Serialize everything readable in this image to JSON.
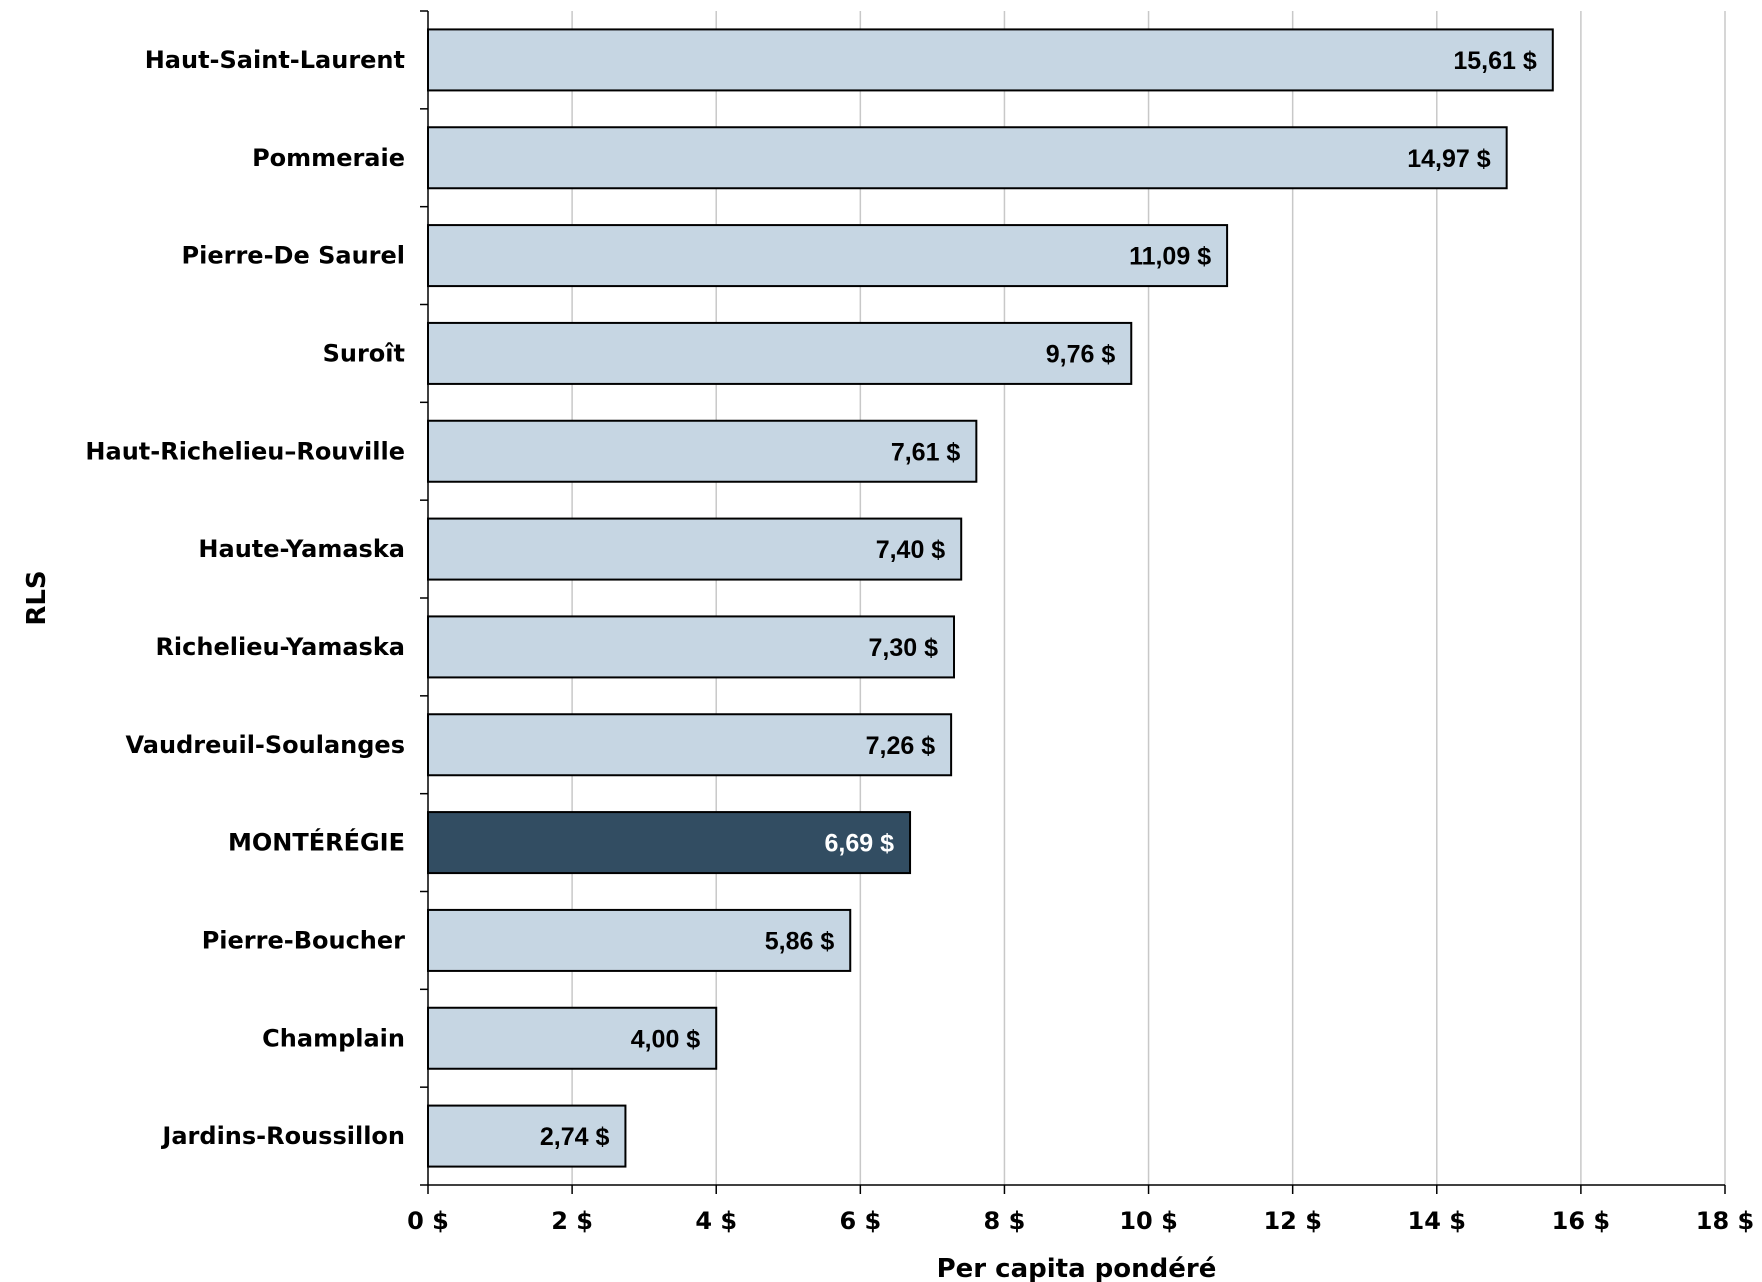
{
  "chart_data": {
    "type": "bar",
    "orientation": "horizontal",
    "categories": [
      "Haut-Saint-Laurent",
      "Pommeraie",
      "Pierre-De Saurel",
      "Suroît",
      "Haut-Richelieu–Rouville",
      "Haute-Yamaska",
      "Richelieu-Yamaska",
      "Vaudreuil-Soulanges",
      "MONTÉRÉGIE",
      "Pierre-Boucher",
      "Champlain",
      "Jardins-Roussillon"
    ],
    "values": [
      15.61,
      14.97,
      11.09,
      9.76,
      7.61,
      7.4,
      7.3,
      7.26,
      6.69,
      5.86,
      4.0,
      2.74
    ],
    "data_labels": [
      "15,61 $",
      "14,97 $",
      "11,09 $",
      "9,76 $",
      "7,61 $",
      "7,40 $",
      "7,30 $",
      "7,26 $",
      "6,69 $",
      "5,86 $",
      "4,00 $",
      "2,74 $"
    ],
    "highlight_category": "MONTÉRÉGIE",
    "xlabel": "Per capita pondéré",
    "ylabel": "RLS",
    "xlim": [
      0,
      18
    ],
    "xticks": [
      0,
      2,
      4,
      6,
      8,
      10,
      12,
      14,
      16,
      18
    ],
    "xtick_labels": [
      "0 $",
      "2 $",
      "4 $",
      "6 $",
      "8 $",
      "10 $",
      "12 $",
      "14 $",
      "16 $",
      "18 $"
    ],
    "grid": "vertical",
    "legend": "none",
    "colors": {
      "bar": "#c6d6e3",
      "highlight_bar": "#324d62",
      "bar_border": "#000000",
      "label_text": "#000000",
      "highlight_label_text": "#ffffff",
      "grid": "#c8c8c8"
    }
  }
}
